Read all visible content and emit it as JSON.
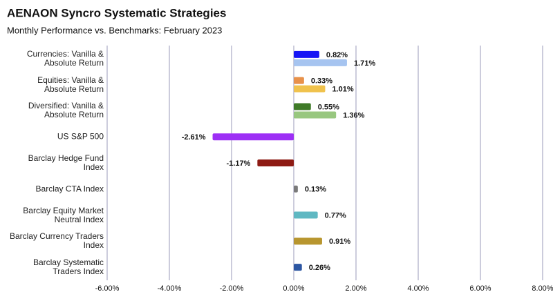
{
  "chart_data": {
    "type": "hbar",
    "title": "AENAON Syncro Systematic Strategies",
    "subtitle": "Monthly Performance vs. Benchmarks: February 2023",
    "categories": [
      "Currencies: Vanilla & Absolute Return",
      "Equities: Vanilla & Absolute Return",
      "Diversified: Vanilla & Absolute Return",
      "US S&P 500",
      "Barclay Hedge Fund Index",
      "Barclay CTA Index",
      "Barclay Equity Market Neutral Index",
      "Barclay Currency Traders Index",
      "Barclay Systematic Traders Index"
    ],
    "series": [
      {
        "values": [
          0.82,
          0.33,
          0.55,
          -2.61,
          -1.17,
          0.13,
          0.77,
          0.91,
          0.26
        ],
        "value_labels": [
          "0.82%",
          "0.33%",
          "0.55%",
          "-2.61%",
          "-1.17%",
          "0.13%",
          "0.77%",
          "0.91%",
          "0.26%"
        ],
        "colors": [
          "#1515f5",
          "#e8914a",
          "#3f7a28",
          "#9d2ff5",
          "#8e1b14",
          "#7a7a7a",
          "#5fb8c2",
          "#b8962f",
          "#2c56a2"
        ]
      },
      {
        "values": [
          1.71,
          1.01,
          1.36,
          null,
          null,
          null,
          null,
          null,
          null
        ],
        "value_labels": [
          "1.71%",
          "1.01%",
          "1.36%",
          null,
          null,
          null,
          null,
          null,
          null
        ],
        "colors": [
          "#a6c4f0",
          "#f0c24c",
          "#98c77f",
          null,
          null,
          null,
          null,
          null,
          null
        ]
      }
    ],
    "xlim": [
      -6,
      8
    ],
    "xticks": [
      {
        "value": -6,
        "label": "-6.00%"
      },
      {
        "value": -4,
        "label": "-4.00%"
      },
      {
        "value": -2,
        "label": "-2.00%"
      },
      {
        "value": 0,
        "label": "0.00%"
      },
      {
        "value": 2,
        "label": "2.00%"
      },
      {
        "value": 4,
        "label": "4.00%"
      },
      {
        "value": 6,
        "label": "6.00%"
      },
      {
        "value": 8,
        "label": "8.00%"
      }
    ],
    "grid": true
  }
}
